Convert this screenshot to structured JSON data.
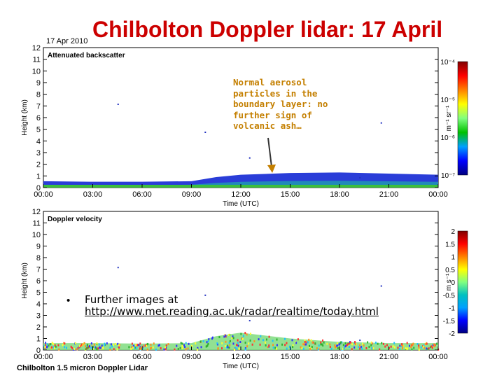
{
  "slide": {
    "title": "Chilbolton Doppler lidar: 17 April",
    "date_label": "17 Apr 2010",
    "footer": "Chilbolton 1.5 micron Doppler Lidar",
    "annotation": "Normal aerosol particles in the boundary layer: no further sign of volcanic ash…",
    "bullet_prefix": "Further images at",
    "bullet_url": "http://www.met.reading.ac.uk/radar/realtime/today.html",
    "bullet_symbol": "•"
  },
  "chart_data": [
    {
      "type": "heatmap",
      "title": "Attenuated backscatter",
      "xlabel": "Time (UTC)",
      "ylabel": "Height (km)",
      "x_ticks": [
        "00:00",
        "03:00",
        "06:00",
        "09:00",
        "12:00",
        "15:00",
        "18:00",
        "21:00",
        "00:00"
      ],
      "y_ticks": [
        0,
        1,
        2,
        3,
        4,
        5,
        6,
        7,
        8,
        9,
        10,
        11,
        12
      ],
      "ylim": [
        0,
        12
      ],
      "colorbar": {
        "unit": "m⁻¹ sr⁻¹",
        "labels": [
          "10⁻⁴",
          "10⁻⁵",
          "10⁻⁶",
          "10⁻⁷"
        ],
        "colors": [
          "#800000",
          "#ff0000",
          "#ff8000",
          "#ffff00",
          "#80ff80",
          "#00c000",
          "#00a0ff",
          "#0000ff",
          "#000080"
        ]
      },
      "layer": {
        "time": [
          0,
          3,
          6,
          9,
          10.5,
          12,
          15,
          18,
          21,
          24
        ],
        "top_height_km": [
          0.55,
          0.5,
          0.5,
          0.55,
          0.9,
          1.1,
          1.25,
          1.3,
          1.2,
          1.1
        ]
      }
    },
    {
      "type": "heatmap",
      "title": "Doppler velocity",
      "xlabel": "Time (UTC)",
      "ylabel": "Height (km)",
      "x_ticks": [
        "00:00",
        "03:00",
        "06:00",
        "09:00",
        "12:00",
        "15:00",
        "18:00",
        "21:00",
        "00:00"
      ],
      "y_ticks": [
        0,
        1,
        2,
        3,
        4,
        5,
        6,
        7,
        8,
        9,
        10,
        11,
        12
      ],
      "ylim": [
        0,
        12
      ],
      "colorbar": {
        "unit": "m s⁻¹",
        "labels": [
          "2",
          "1.5",
          "1",
          "0.5",
          "0",
          "-0.5",
          "-1",
          "-1.5",
          "-2"
        ],
        "colors": [
          "#800000",
          "#ff0000",
          "#ff8000",
          "#ffff00",
          "#80ff80",
          "#00c0c0",
          "#00a0ff",
          "#0000ff",
          "#000080"
        ]
      },
      "layer": {
        "time": [
          0,
          3,
          6,
          9,
          10.5,
          12,
          15,
          18,
          21,
          24
        ],
        "top_height_km": [
          0.6,
          0.6,
          0.55,
          0.6,
          1.2,
          1.5,
          1.0,
          0.7,
          0.6,
          0.6
        ]
      }
    }
  ]
}
